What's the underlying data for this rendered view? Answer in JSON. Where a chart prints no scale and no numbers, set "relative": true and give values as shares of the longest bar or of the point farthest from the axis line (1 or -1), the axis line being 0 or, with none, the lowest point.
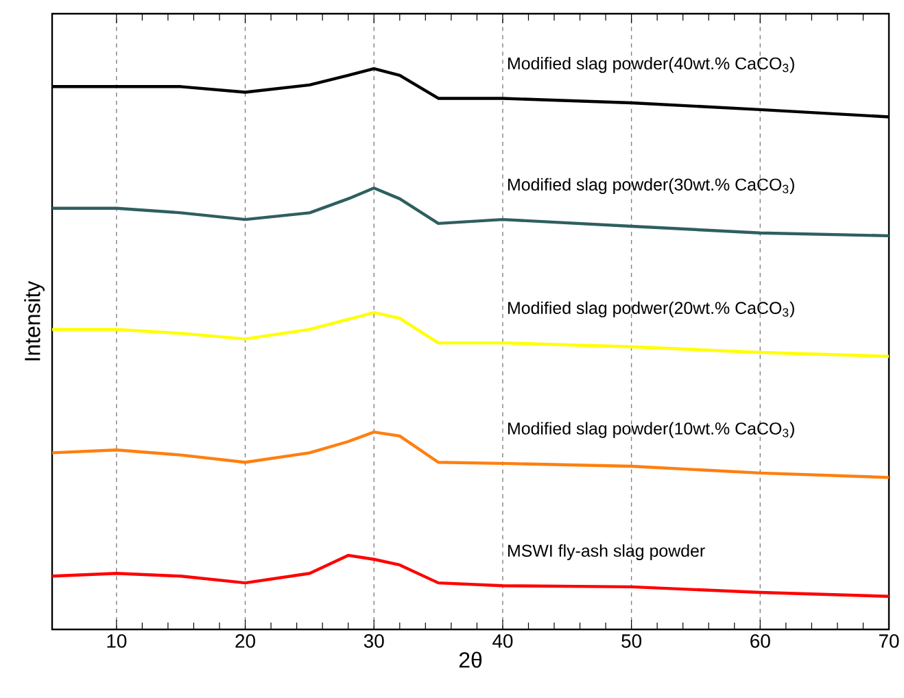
{
  "chart_data": {
    "type": "line",
    "relative": true,
    "xlabel": "2θ",
    "ylabel": "Intensity",
    "xlim": [
      5,
      70
    ],
    "xticks": [
      10,
      20,
      30,
      40,
      50,
      60,
      70
    ],
    "grid": "x",
    "marker": "none",
    "line_style": "solid",
    "x": [
      5,
      10,
      15,
      20,
      25,
      28,
      30,
      32,
      35,
      40,
      50,
      60,
      70
    ],
    "series": [
      {
        "name": "Modified slag powder(40wt.% CaCO$_{3}$)",
        "color": "#000000",
        "values": [
          0.968,
          0.968,
          0.968,
          0.958,
          0.971,
          0.988,
          1,
          0.988,
          0.947,
          0.947,
          0.939,
          0.927,
          0.914
        ]
      },
      {
        "name": "Modified slag powder(30wt.% CaCO$_{3}$)",
        "color": "#2f5f60",
        "values": [
          0.751,
          0.751,
          0.743,
          0.731,
          0.743,
          0.768,
          0.787,
          0.768,
          0.724,
          0.731,
          0.719,
          0.707,
          0.702
        ]
      },
      {
        "name": "Modified slag podwer(20wt.% CaCO$_{3}$)",
        "color": "#ffff00",
        "values": [
          0.535,
          0.535,
          0.528,
          0.518,
          0.535,
          0.553,
          0.565,
          0.555,
          0.511,
          0.511,
          0.504,
          0.494,
          0.487
        ]
      },
      {
        "name": "Modified slag powder(10wt.% CaCO$_{3}$)",
        "color": "#ff7f0f",
        "values": [
          0.315,
          0.32,
          0.311,
          0.298,
          0.315,
          0.335,
          0.352,
          0.345,
          0.298,
          0.296,
          0.291,
          0.279,
          0.271
        ]
      },
      {
        "name": "MSWI fly-ash slag powder",
        "color": "#ff0000",
        "values": [
          0.095,
          0.1,
          0.095,
          0.083,
          0.1,
          0.132,
          0.125,
          0.115,
          0.083,
          0.078,
          0.076,
          0.066,
          0.059
        ]
      }
    ]
  }
}
